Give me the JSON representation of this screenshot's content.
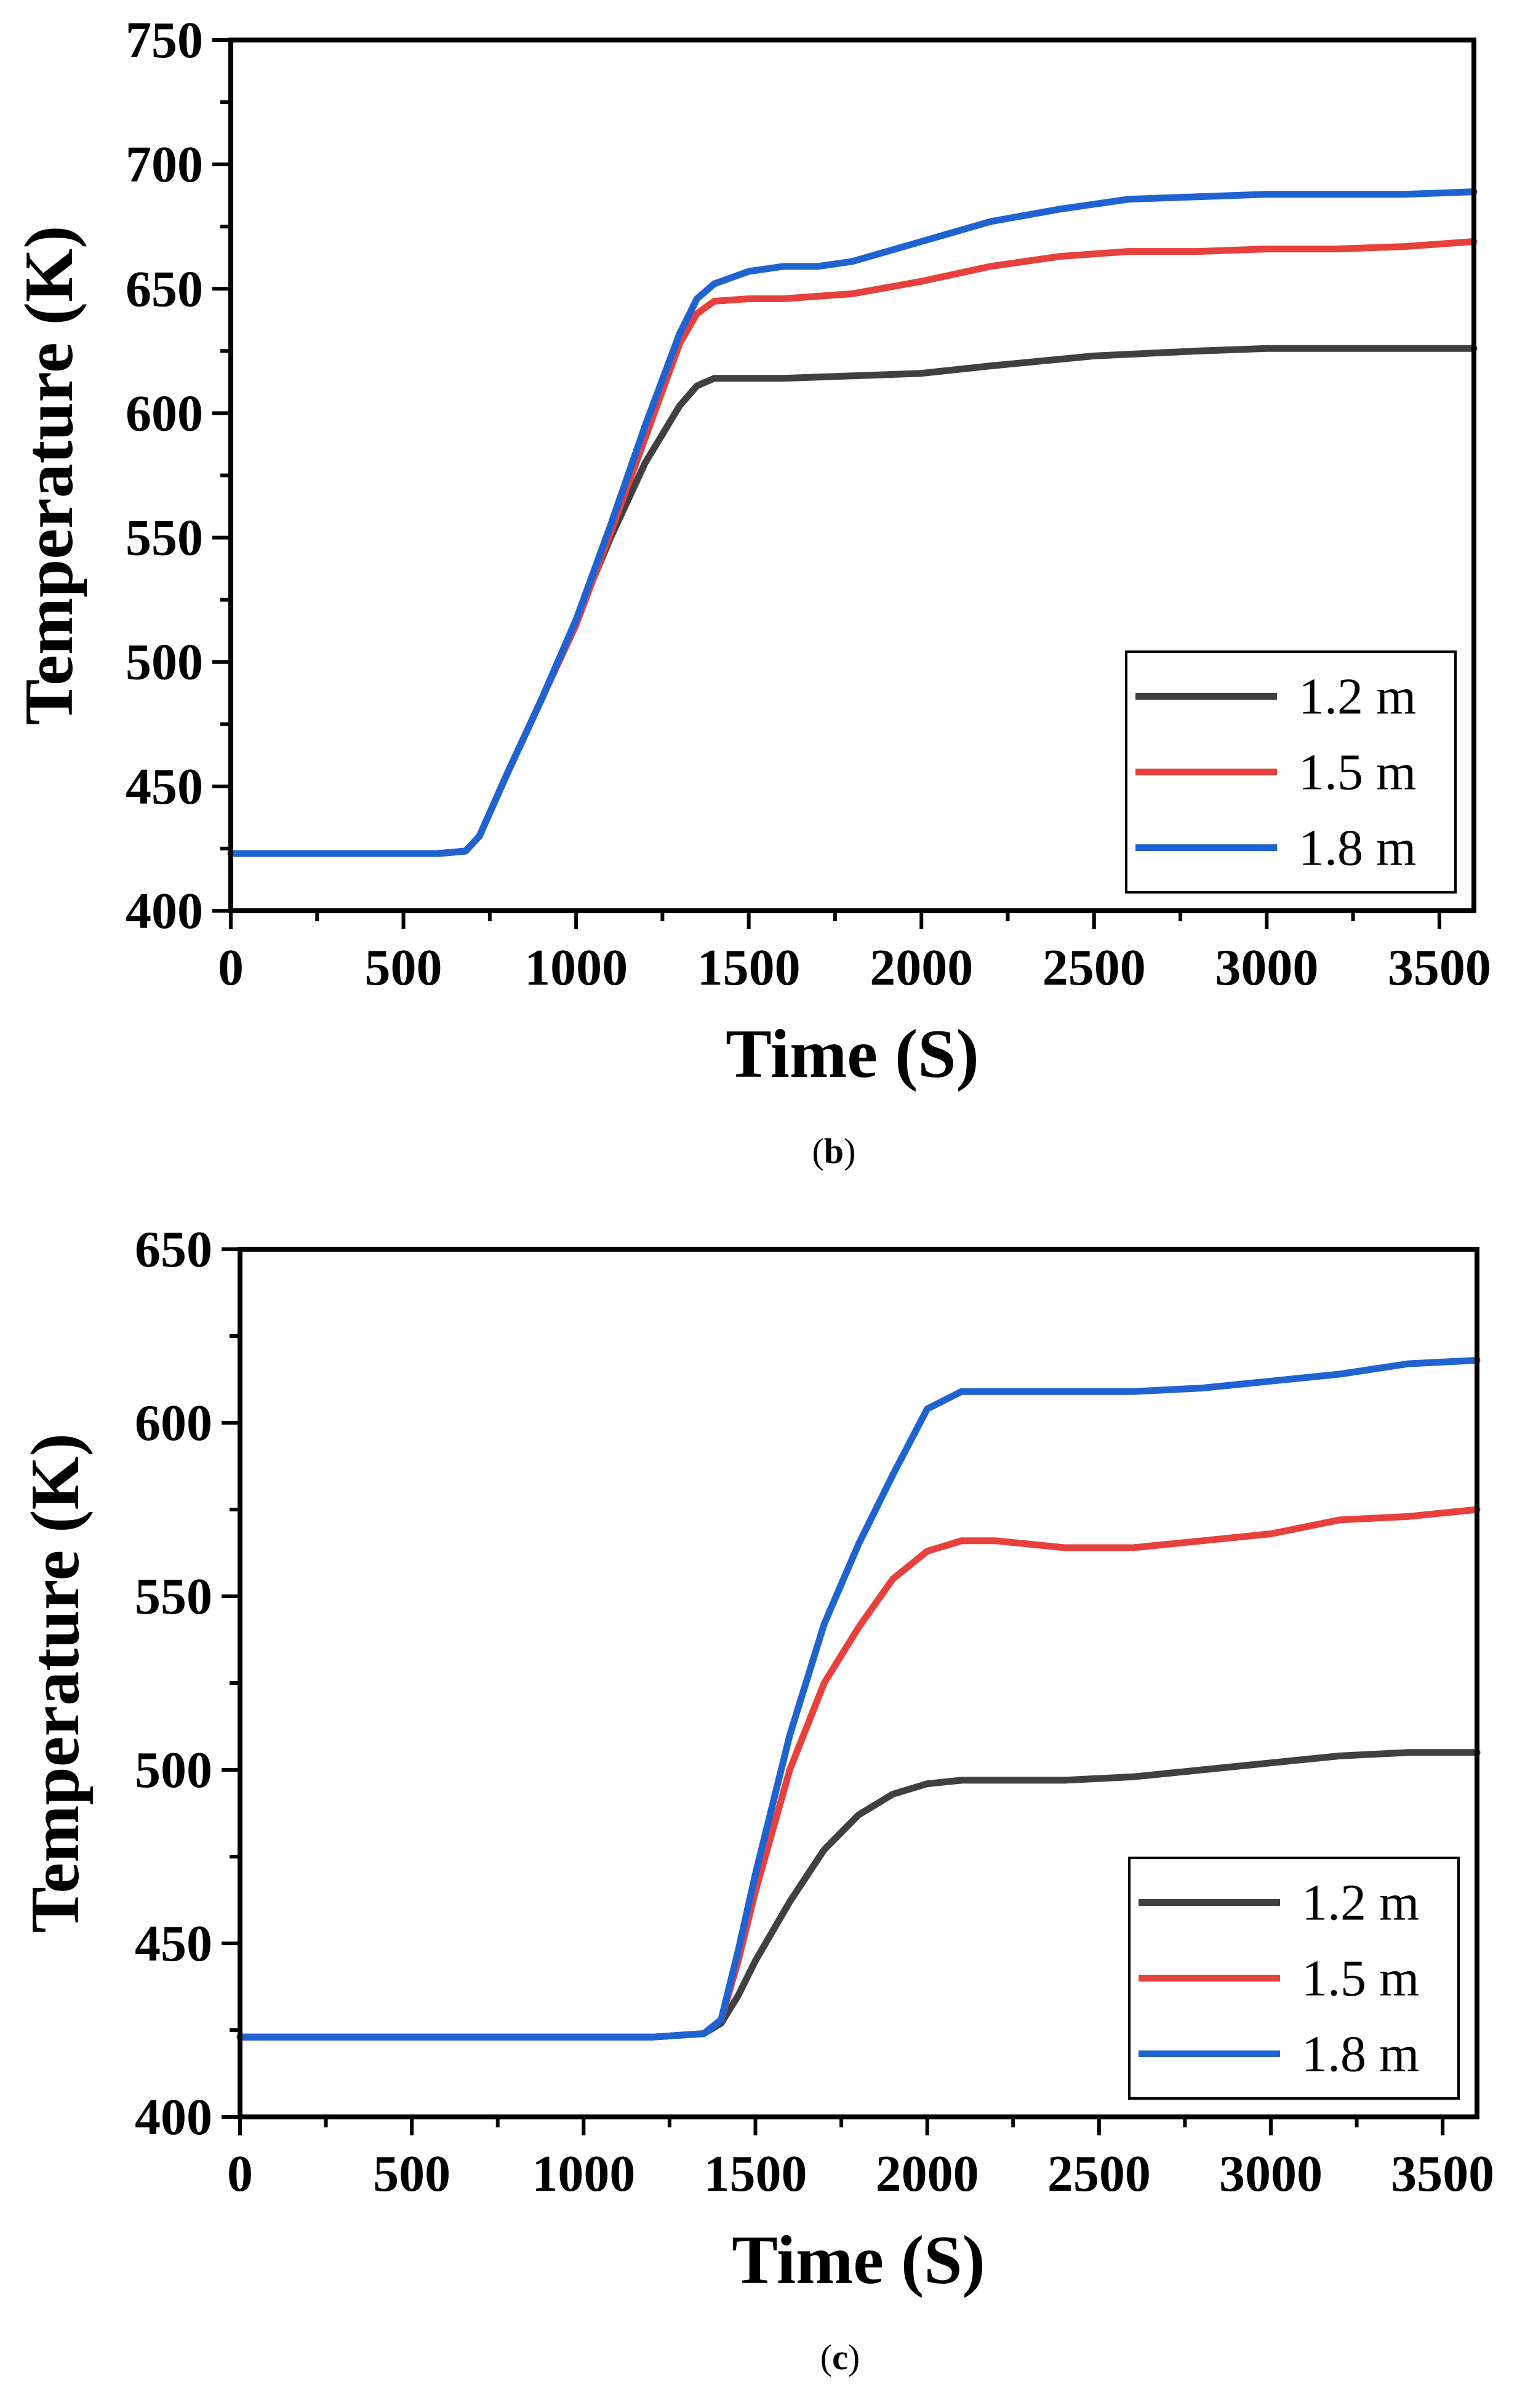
{
  "chart_data": [
    {
      "panel": "b",
      "caption": "(b)",
      "caption_letter": "b",
      "type": "line",
      "title": "",
      "xlabel": "Time (S)",
      "ylabel": "Temperature (K)",
      "xlim": [
        0,
        3600
      ],
      "ylim": [
        400,
        750
      ],
      "xticks": [
        0,
        500,
        1000,
        1500,
        2000,
        2500,
        3000,
        3500
      ],
      "yticks": [
        400,
        450,
        500,
        550,
        600,
        650,
        700,
        750
      ],
      "legend_position": "bottom-right",
      "series": [
        {
          "name": "1.2 m",
          "color": "#404040",
          "x": [
            0,
            200,
            400,
            600,
            680,
            720,
            800,
            900,
            1000,
            1100,
            1200,
            1300,
            1350,
            1400,
            1500,
            1600,
            1800,
            2000,
            2200,
            2500,
            2800,
            3000,
            3200,
            3400,
            3600
          ],
          "y": [
            423,
            423,
            423,
            423,
            424,
            430,
            455,
            485,
            517,
            550,
            580,
            603,
            611,
            614,
            614,
            614,
            615,
            616,
            619,
            623,
            625,
            626,
            626,
            626,
            626
          ]
        },
        {
          "name": "1.5 m",
          "color": "#e8403c",
          "x": [
            0,
            200,
            400,
            600,
            680,
            720,
            800,
            900,
            1000,
            1100,
            1200,
            1300,
            1350,
            1400,
            1500,
            1600,
            1700,
            1800,
            2000,
            2200,
            2400,
            2600,
            2800,
            3000,
            3200,
            3400,
            3600
          ],
          "y": [
            423,
            423,
            423,
            423,
            424,
            430,
            455,
            485,
            515,
            552,
            590,
            628,
            640,
            645,
            646,
            646,
            647,
            648,
            653,
            659,
            663,
            665,
            665,
            666,
            666,
            667,
            669
          ]
        },
        {
          "name": "1.8 m",
          "color": "#1f63d3",
          "x": [
            0,
            200,
            400,
            600,
            680,
            720,
            800,
            900,
            1000,
            1100,
            1200,
            1300,
            1350,
            1400,
            1500,
            1600,
            1700,
            1800,
            2000,
            2200,
            2400,
            2600,
            2800,
            3000,
            3200,
            3400,
            3600
          ],
          "y": [
            423,
            423,
            423,
            423,
            424,
            430,
            455,
            485,
            517,
            555,
            595,
            632,
            646,
            652,
            657,
            659,
            659,
            661,
            669,
            677,
            682,
            686,
            687,
            688,
            688,
            688,
            689
          ]
        }
      ]
    },
    {
      "panel": "c",
      "caption": "(c)",
      "caption_letter": "c",
      "type": "line",
      "title": "",
      "xlabel": "Time (S)",
      "ylabel": "Temperature (K)",
      "xlim": [
        0,
        3600
      ],
      "ylim": [
        400,
        650
      ],
      "xticks": [
        0,
        500,
        1000,
        1500,
        2000,
        2500,
        3000,
        3500
      ],
      "yticks": [
        400,
        450,
        500,
        550,
        600,
        650
      ],
      "legend_position": "bottom-right",
      "series": [
        {
          "name": "1.2 m",
          "color": "#404040",
          "x": [
            0,
            300,
            600,
            900,
            1200,
            1350,
            1400,
            1450,
            1500,
            1600,
            1700,
            1800,
            1900,
            2000,
            2100,
            2200,
            2400,
            2600,
            2800,
            3000,
            3200,
            3400,
            3600
          ],
          "y": [
            423,
            423,
            423,
            423,
            423,
            424,
            427,
            435,
            445,
            462,
            477,
            487,
            493,
            496,
            497,
            497,
            497,
            498,
            500,
            502,
            504,
            505,
            505
          ]
        },
        {
          "name": "1.5 m",
          "color": "#e8403c",
          "x": [
            0,
            300,
            600,
            900,
            1200,
            1350,
            1400,
            1450,
            1500,
            1600,
            1700,
            1800,
            1900,
            2000,
            2100,
            2200,
            2400,
            2600,
            2800,
            3000,
            3200,
            3400,
            3600
          ],
          "y": [
            423,
            423,
            423,
            423,
            423,
            424,
            428,
            445,
            465,
            500,
            525,
            541,
            555,
            563,
            566,
            566,
            564,
            564,
            566,
            568,
            572,
            573,
            575
          ]
        },
        {
          "name": "1.8 m",
          "color": "#1f63d3",
          "x": [
            0,
            300,
            600,
            900,
            1200,
            1350,
            1400,
            1450,
            1500,
            1600,
            1700,
            1800,
            1900,
            2000,
            2100,
            2200,
            2400,
            2600,
            2800,
            3000,
            3200,
            3400,
            3600
          ],
          "y": [
            423,
            423,
            423,
            423,
            423,
            424,
            428,
            448,
            470,
            510,
            542,
            565,
            585,
            604,
            609,
            609,
            609,
            609,
            610,
            612,
            614,
            617,
            618
          ]
        }
      ]
    }
  ]
}
